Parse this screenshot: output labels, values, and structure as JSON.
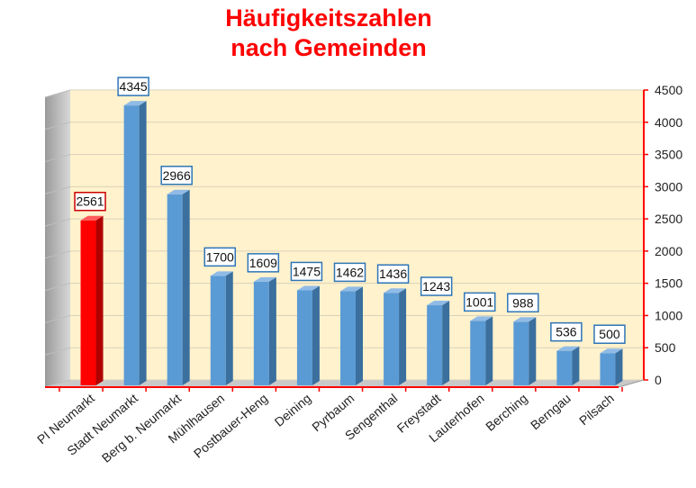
{
  "chart_data": {
    "type": "bar",
    "title_lines": [
      "Häufigkeitszahlen",
      "nach Gemeinden"
    ],
    "categories": [
      "PI Neumarkt",
      "Stadt Neumarkt",
      "Berg b. Neumarkt",
      "Mühlhausen",
      "Postbauer-Heng",
      "Deining",
      "Pyrbaum",
      "Sengenthal",
      "Freystadt",
      "Lauterhofen",
      "Berching",
      "Berngau",
      "Pilsach"
    ],
    "values": [
      2561,
      4345,
      2966,
      1700,
      1609,
      1475,
      1462,
      1436,
      1243,
      1001,
      988,
      536,
      500
    ],
    "highlight_index": 0,
    "ylim": [
      0,
      4500
    ],
    "yticks": [
      0,
      500,
      1000,
      1500,
      2000,
      2500,
      3000,
      3500,
      4000,
      4500
    ],
    "grid": true,
    "colors": {
      "bar": "#5b9bd5",
      "bar_side": "#3a6f9e",
      "highlight": "#ff0000",
      "highlight_side": "#b00000",
      "plot_background": "#fff2cc",
      "axis": "#ff0000",
      "title": "#ff0000"
    }
  }
}
